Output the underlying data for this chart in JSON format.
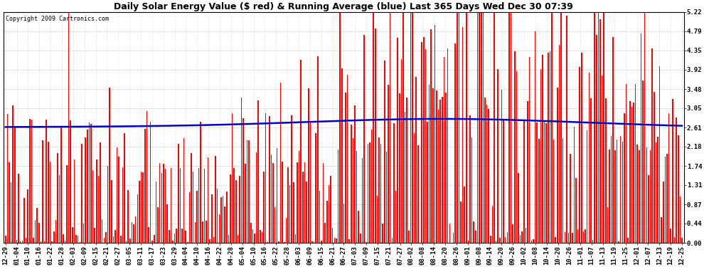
{
  "title": "Daily Solar Energy Value ($ red) & Running Average (blue) Last 365 Days Wed Dec 30 07:39",
  "copyright": "Copyright 2009 Cartronics.com",
  "bar_color": "#ff0000",
  "avg_color": "#0000cc",
  "background_color": "#ffffff",
  "plot_bg_color": "#ffffff",
  "grid_color": "#bbbbbb",
  "yticks": [
    0.0,
    0.44,
    0.87,
    1.31,
    1.74,
    2.18,
    2.61,
    3.05,
    3.48,
    3.92,
    4.35,
    4.79,
    5.22
  ],
  "ylim": [
    0,
    5.22
  ],
  "x_labels": [
    "12-29",
    "01-04",
    "01-10",
    "01-16",
    "01-22",
    "01-28",
    "02-03",
    "02-09",
    "02-15",
    "02-21",
    "02-27",
    "03-05",
    "03-11",
    "03-17",
    "03-23",
    "03-29",
    "04-04",
    "04-10",
    "04-16",
    "04-22",
    "04-28",
    "05-04",
    "05-10",
    "05-16",
    "05-22",
    "05-28",
    "06-03",
    "06-09",
    "06-15",
    "06-21",
    "06-27",
    "07-03",
    "07-09",
    "07-15",
    "07-21",
    "07-27",
    "08-02",
    "08-08",
    "08-14",
    "08-20",
    "08-26",
    "09-01",
    "09-08",
    "09-14",
    "09-20",
    "09-26",
    "10-02",
    "10-08",
    "10-14",
    "10-20",
    "10-26",
    "11-01",
    "11-07",
    "11-13",
    "11-19",
    "11-25",
    "12-01",
    "12-07",
    "12-13",
    "12-19",
    "12-25"
  ],
  "num_days": 365,
  "bar_width": 0.6,
  "avg_linewidth": 1.8,
  "title_fontsize": 9,
  "tick_fontsize": 6.5,
  "copyright_fontsize": 6
}
